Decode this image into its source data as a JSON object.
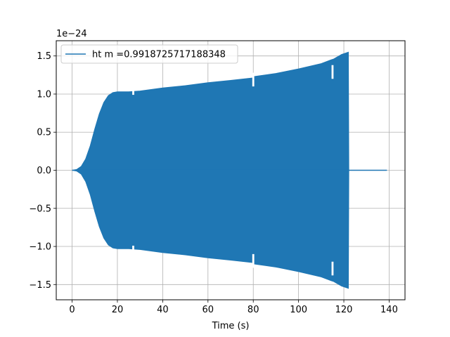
{
  "chart_data": {
    "type": "line",
    "title": "",
    "xlabel": "Time (s)",
    "ylabel": "",
    "y_offset_label": "1e−24",
    "xlim": [
      -7,
      147
    ],
    "ylim": [
      -1.7,
      1.7
    ],
    "x_ticks": [
      0,
      20,
      40,
      60,
      80,
      100,
      120,
      140
    ],
    "x_tick_labels": [
      "0",
      "20",
      "40",
      "60",
      "80",
      "100",
      "120",
      "140"
    ],
    "y_ticks": [
      -1.5,
      -1.0,
      -0.5,
      0.0,
      0.5,
      1.0,
      1.5
    ],
    "y_tick_labels": [
      "−1.5",
      "−1.0",
      "−0.5",
      "0.0",
      "0.5",
      "1.0",
      "1.5"
    ],
    "grid": true,
    "legend_position": "top-left",
    "series": [
      {
        "name": "ht m =0.9918725717188348",
        "color": "#1f77b4",
        "envelope": {
          "x": [
            0,
            2,
            4,
            6,
            8,
            10,
            12,
            14,
            16,
            18,
            20,
            25,
            30,
            40,
            50,
            60,
            70,
            79.5,
            80.5,
            90,
            100,
            110,
            114.5,
            115.5,
            119,
            122,
            122.2,
            139
          ],
          "upper": [
            0.0,
            0.01,
            0.05,
            0.15,
            0.32,
            0.54,
            0.74,
            0.89,
            0.98,
            1.02,
            1.03,
            1.03,
            1.04,
            1.08,
            1.11,
            1.15,
            1.18,
            1.21,
            1.23,
            1.27,
            1.33,
            1.4,
            1.45,
            1.46,
            1.52,
            1.55,
            0.0,
            0.0
          ],
          "lower": [
            0.0,
            -0.01,
            -0.05,
            -0.15,
            -0.32,
            -0.54,
            -0.74,
            -0.89,
            -0.98,
            -1.02,
            -1.03,
            -1.03,
            -1.04,
            -1.08,
            -1.11,
            -1.15,
            -1.18,
            -1.21,
            -1.23,
            -1.27,
            -1.33,
            -1.4,
            -1.45,
            -1.46,
            -1.52,
            -1.55,
            0.0,
            0.0
          ]
        },
        "glitches": [
          {
            "x": 27,
            "upper": 0.99,
            "lower": -0.99
          },
          {
            "x": 80,
            "upper": 1.1,
            "lower": -1.1
          },
          {
            "x": 115,
            "upper": 1.2,
            "lower": -1.2
          }
        ]
      }
    ]
  }
}
